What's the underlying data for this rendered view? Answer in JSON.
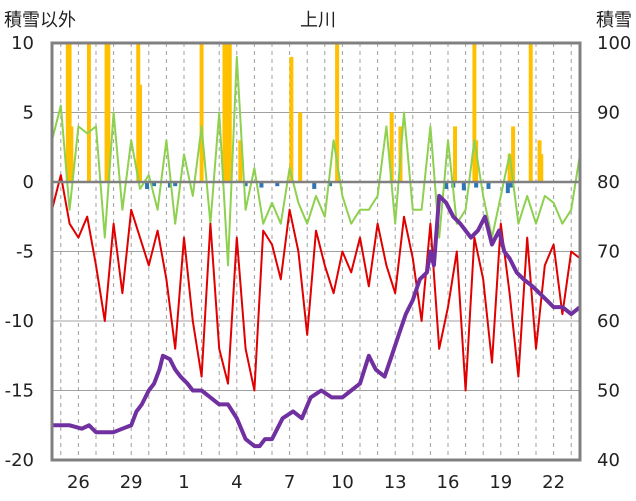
{
  "chart_data": {
    "type": "line",
    "title": "上川",
    "ylabel_left": "積雪以外",
    "ylabel_right": "積雪",
    "ylim_left": [
      -20,
      10
    ],
    "ylim_right": [
      40,
      100
    ],
    "yticks_left": [
      "10",
      "5",
      "0",
      "-5",
      "-10",
      "-15",
      "-20"
    ],
    "yticks_right": [
      "100",
      "90",
      "80",
      "70",
      "60",
      "50",
      "40"
    ],
    "xticks": [
      {
        "label": "26",
        "day": 2
      },
      {
        "label": "29",
        "day": 5
      },
      {
        "label": "1",
        "day": 8
      },
      {
        "label": "4",
        "day": 11
      },
      {
        "label": "7",
        "day": 14
      },
      {
        "label": "10",
        "day": 17
      },
      {
        "label": "13",
        "day": 20
      },
      {
        "label": "16",
        "day": 23
      },
      {
        "label": "19",
        "day": 26
      },
      {
        "label": "22",
        "day": 29
      }
    ],
    "x_range_days": [
      0.5,
      30.5
    ],
    "colors": {
      "temperature": "#e00000",
      "humidity": "#8ed04f",
      "precipitation": "#ffc000",
      "negative_bars": "#2e75b6",
      "snow": "#7030a0",
      "grid": "#a0a0a0",
      "frame": "#808080"
    },
    "series": [
      {
        "key": "temperature",
        "x": [
          0.5,
          1.0,
          1.5,
          2.0,
          2.5,
          3.0,
          3.5,
          4.0,
          4.5,
          5.0,
          5.5,
          6.0,
          6.5,
          7.0,
          7.5,
          8.0,
          8.5,
          9.0,
          9.5,
          10.0,
          10.5,
          11.0,
          11.5,
          12.0,
          12.5,
          13.0,
          13.5,
          14.0,
          14.5,
          15.0,
          15.5,
          16.0,
          16.5,
          17.0,
          17.5,
          18.0,
          18.5,
          19.0,
          19.5,
          20.0,
          20.5,
          21.0,
          21.5,
          22.0,
          22.5,
          23.0,
          23.5,
          24.0,
          24.5,
          25.0,
          25.5,
          26.0,
          26.5,
          27.0,
          27.5,
          28.0,
          28.5,
          29.0,
          29.5,
          30.0,
          30.5
        ],
        "y": [
          -2,
          0.5,
          -3,
          -4,
          -2.5,
          -6,
          -10,
          -3,
          -8,
          -2,
          -4,
          -6,
          -3.5,
          -7,
          -12,
          -4,
          -10,
          -14,
          -3,
          -12,
          -14.5,
          -4,
          -12,
          -15,
          -3.5,
          -4.5,
          -7,
          -2,
          -5,
          -11,
          -3.5,
          -6,
          -8,
          -5,
          -6.5,
          -4,
          -7.5,
          -3,
          -6,
          -8,
          -2.5,
          -5.5,
          -10,
          -3,
          -12,
          -9,
          -5,
          -15,
          -4,
          -7,
          -13,
          -3,
          -8,
          -14,
          -4,
          -12,
          -6,
          -4.5,
          -9.5,
          -5,
          -5.5
        ]
      },
      {
        "key": "humidity",
        "x": [
          0.5,
          1.0,
          1.5,
          2.0,
          2.5,
          3.0,
          3.5,
          4.0,
          4.5,
          5.0,
          5.5,
          6.0,
          6.5,
          7.0,
          7.5,
          8.0,
          8.5,
          9.0,
          9.5,
          10.0,
          10.5,
          11.0,
          11.5,
          12.0,
          12.5,
          13.0,
          13.5,
          14.0,
          14.5,
          15.0,
          15.5,
          16.0,
          16.5,
          17.0,
          17.5,
          18.0,
          18.5,
          19.0,
          19.5,
          20.0,
          20.5,
          21.0,
          21.5,
          22.0,
          22.5,
          23.0,
          23.5,
          24.0,
          24.5,
          25.0,
          25.5,
          26.0,
          26.5,
          27.0,
          27.5,
          28.0,
          28.5,
          29.0,
          29.5,
          30.0,
          30.5
        ],
        "y": [
          3,
          5.5,
          -2,
          4,
          3.5,
          4,
          -4,
          5,
          -2,
          3,
          -0.5,
          0.5,
          -2,
          3,
          -3,
          2,
          -1,
          4,
          -3,
          5,
          -6,
          9,
          -2,
          1,
          -3,
          -1.5,
          -3,
          1,
          -1.5,
          -3,
          -1,
          -2.5,
          3,
          -1,
          -3,
          -2,
          -2,
          -1,
          4,
          -3,
          5,
          -2,
          -2,
          4,
          -4,
          3,
          -3,
          -2,
          3,
          -1,
          -4,
          -1,
          2,
          -3,
          -1,
          -3,
          -1,
          -1.5,
          -3,
          -2,
          2
        ]
      },
      {
        "key": "snow",
        "x": [
          0.5,
          1.5,
          2.2,
          2.6,
          3.0,
          3.5,
          4.0,
          4.5,
          5.0,
          5.3,
          5.6,
          6.0,
          6.3,
          6.6,
          6.8,
          7.2,
          7.5,
          7.8,
          8.2,
          8.5,
          9.0,
          9.5,
          10.0,
          10.5,
          11.0,
          11.5,
          12.0,
          12.3,
          12.6,
          13.0,
          13.6,
          14.2,
          14.7,
          15.2,
          15.8,
          16.4,
          17.0,
          17.5,
          18.0,
          18.5,
          18.9,
          19.4,
          19.8,
          20.2,
          20.6,
          21.0,
          21.4,
          21.8,
          22.0,
          22.2,
          22.5,
          22.9,
          23.3,
          23.7,
          24.0,
          24.3,
          24.7,
          25.1,
          25.5,
          25.9,
          26.2,
          26.5,
          26.9,
          27.3,
          27.8,
          28.2,
          28.6,
          29.0,
          29.5,
          30.0,
          30.5
        ],
        "y": [
          45,
          45,
          44.5,
          45,
          44,
          44,
          44,
          44.5,
          45,
          47,
          48,
          50,
          51,
          53,
          55,
          54.5,
          53,
          52,
          51,
          50,
          50,
          49,
          48,
          48,
          46,
          43,
          42,
          42,
          43,
          43,
          46,
          47,
          46,
          49,
          50,
          49,
          49,
          50,
          51,
          55,
          53,
          52,
          55,
          58,
          61,
          63,
          66,
          67,
          70,
          68,
          78,
          77,
          75,
          74,
          73,
          72,
          73,
          75,
          71,
          73,
          70,
          69,
          67,
          66,
          65,
          64,
          63,
          62,
          62,
          61,
          62
        ]
      }
    ],
    "precip_bars": [
      {
        "day": 1.4,
        "value": 10
      },
      {
        "day": 1.5,
        "value": 10
      },
      {
        "day": 1.6,
        "value": 4
      },
      {
        "day": 2.6,
        "value": 10
      },
      {
        "day": 3.6,
        "value": 10
      },
      {
        "day": 3.7,
        "value": 10
      },
      {
        "day": 5.4,
        "value": 10
      },
      {
        "day": 5.5,
        "value": 7
      },
      {
        "day": 9.0,
        "value": 10
      },
      {
        "day": 10.3,
        "value": 10
      },
      {
        "day": 10.45,
        "value": 10
      },
      {
        "day": 10.6,
        "value": 10
      },
      {
        "day": 11.2,
        "value": 3
      },
      {
        "day": 14.1,
        "value": 9
      },
      {
        "day": 14.6,
        "value": 5
      },
      {
        "day": 16.7,
        "value": 10
      },
      {
        "day": 19.8,
        "value": 5
      },
      {
        "day": 20.3,
        "value": 4
      },
      {
        "day": 23.4,
        "value": 4
      },
      {
        "day": 24.5,
        "value": 10
      },
      {
        "day": 24.6,
        "value": 3
      },
      {
        "day": 26.5,
        "value": 2
      },
      {
        "day": 26.7,
        "value": 4
      },
      {
        "day": 27.7,
        "value": 10
      },
      {
        "day": 28.2,
        "value": 3
      },
      {
        "day": 28.3,
        "value": 2
      }
    ],
    "neg_bars": [
      {
        "day": 5.9,
        "value": -0.5
      },
      {
        "day": 6.3,
        "value": -0.3
      },
      {
        "day": 7.2,
        "value": -0.4
      },
      {
        "day": 7.5,
        "value": -0.3
      },
      {
        "day": 11.5,
        "value": -0.3
      },
      {
        "day": 12.4,
        "value": -0.4
      },
      {
        "day": 13.3,
        "value": -0.3
      },
      {
        "day": 15.4,
        "value": -0.5
      },
      {
        "day": 16.3,
        "value": -0.3
      },
      {
        "day": 22.9,
        "value": -0.5
      },
      {
        "day": 23.3,
        "value": -0.4
      },
      {
        "day": 23.9,
        "value": -0.6
      },
      {
        "day": 24.6,
        "value": -0.4
      },
      {
        "day": 25.3,
        "value": -0.5
      },
      {
        "day": 26.4,
        "value": -0.8
      },
      {
        "day": 26.6,
        "value": -0.4
      }
    ]
  }
}
